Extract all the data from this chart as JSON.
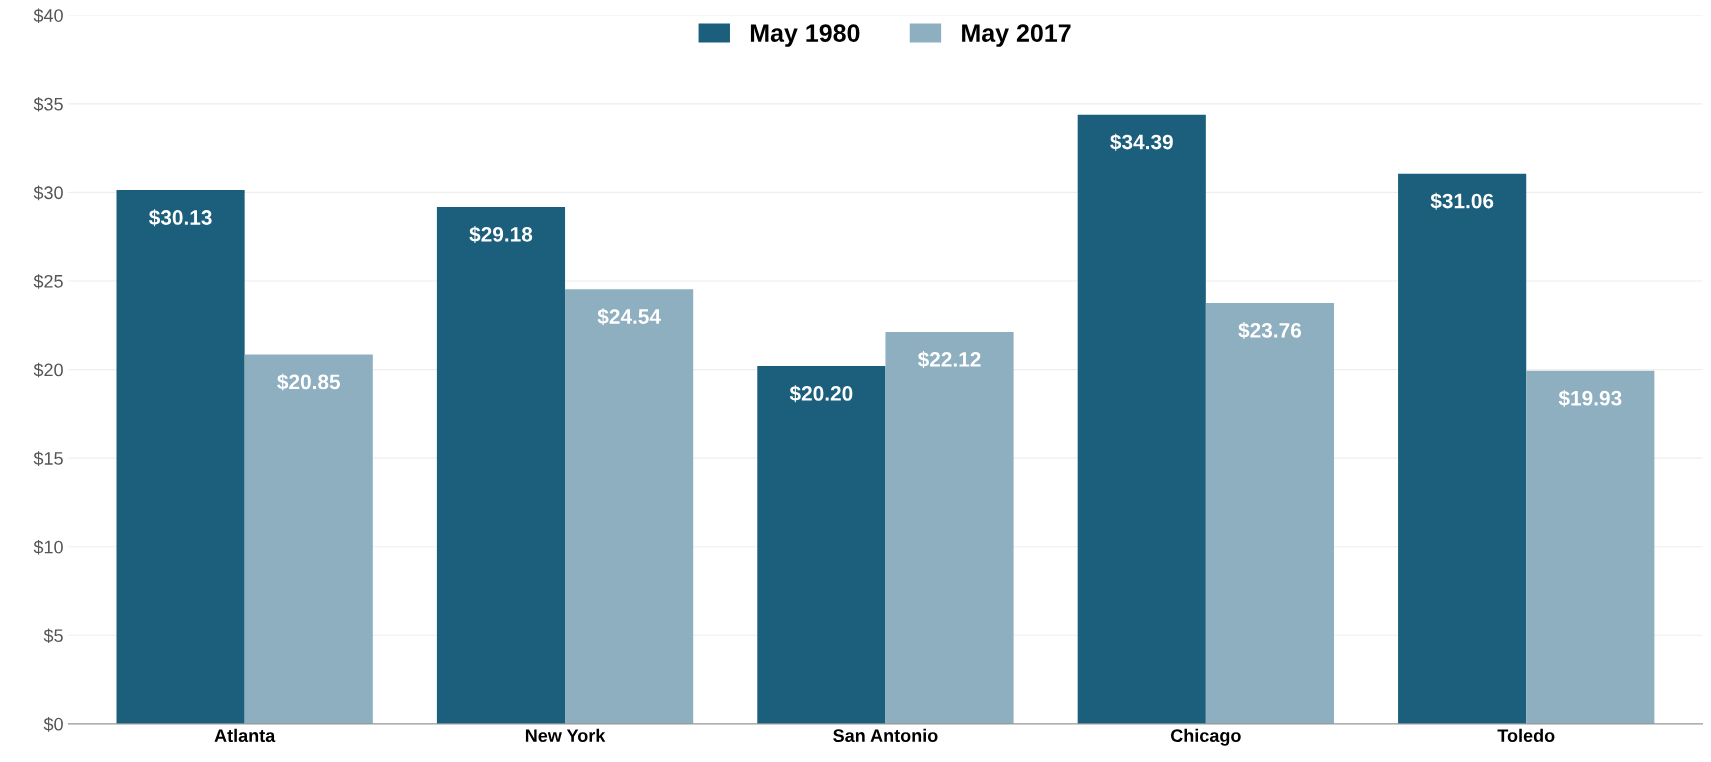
{
  "chart_data": {
    "type": "bar",
    "categories": [
      "Atlanta",
      "New York",
      "San Antonio",
      "Chicago",
      "Toledo"
    ],
    "series": [
      {
        "name": "May 1980",
        "color": "#1b5f7c",
        "values": [
          30.13,
          29.18,
          20.2,
          34.39,
          31.06
        ],
        "value_labels": [
          "$30.13",
          "$29.18",
          "$20.20",
          "$34.39",
          "$31.06"
        ]
      },
      {
        "name": "May 2017",
        "color": "#8eafc0",
        "values": [
          20.85,
          24.54,
          22.12,
          23.76,
          19.93
        ],
        "value_labels": [
          "$20.85",
          "$24.54",
          "$22.12",
          "$23.76",
          "$19.93"
        ]
      }
    ],
    "ylim": [
      0,
      40
    ],
    "yticks": [
      {
        "value": 0,
        "label": "$0"
      },
      {
        "value": 5,
        "label": "$5"
      },
      {
        "value": 10,
        "label": "$10"
      },
      {
        "value": 15,
        "label": "$15"
      },
      {
        "value": 20,
        "label": "$20"
      },
      {
        "value": 25,
        "label": "$25"
      },
      {
        "value": 30,
        "label": "$30"
      },
      {
        "value": 35,
        "label": "$35"
      },
      {
        "value": 40,
        "label": "$40"
      }
    ],
    "grid": "y",
    "legend": "top"
  }
}
